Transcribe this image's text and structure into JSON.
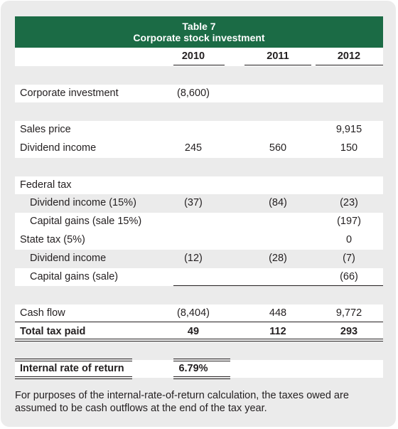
{
  "table": {
    "title": "Table 7",
    "subtitle": "Corporate stock investment",
    "columns": [
      "2010",
      "2011",
      "2012"
    ],
    "rows": [
      {
        "label": "Corporate investment",
        "values": [
          "(8,600)",
          "",
          ""
        ]
      },
      {
        "label": "Sales price",
        "values": [
          "",
          "",
          "9,915"
        ]
      },
      {
        "label": "Dividend income",
        "values": [
          "245",
          "560",
          "150"
        ]
      },
      {
        "label": "Federal tax",
        "values": [
          "",
          "",
          ""
        ]
      },
      {
        "label": "Dividend income (15%)",
        "values": [
          "(37)",
          "(84)",
          "(23)"
        ]
      },
      {
        "label": "Capital gains (sale 15%)",
        "values": [
          "",
          "",
          "(197)"
        ]
      },
      {
        "label": "State tax (5%)",
        "values": [
          "",
          "",
          "0"
        ]
      },
      {
        "label": "Dividend income",
        "values": [
          "(12)",
          "(28)",
          "(7)"
        ]
      },
      {
        "label": "Capital gains (sale)",
        "values": [
          "",
          "",
          "(66)"
        ]
      },
      {
        "label": "Cash flow",
        "values": [
          "(8,404)",
          "448",
          "9,772"
        ]
      },
      {
        "label": "Total tax paid",
        "values": [
          "49",
          "112",
          "293"
        ]
      },
      {
        "label": "Internal rate of return",
        "values": [
          "6.79%",
          "",
          ""
        ]
      }
    ]
  },
  "footnote": "For purposes of the internal-rate-of-return calculation, the taxes owed are assumed to be cash outflows at the end of the tax year.",
  "colors": {
    "header_bg": "#1b6b45",
    "card_bg": "#ebebeb"
  }
}
